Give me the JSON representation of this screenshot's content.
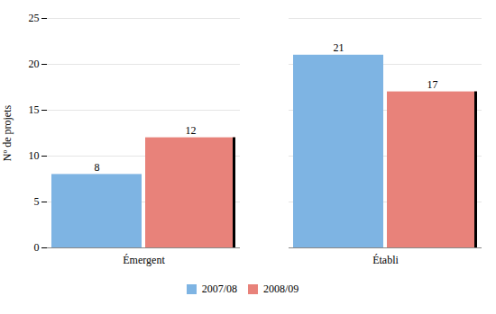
{
  "chart_data": {
    "type": "bar",
    "categories": [
      "Émergent",
      "Établi"
    ],
    "series": [
      {
        "name": "2007/08",
        "color": "#7EB4E3",
        "values": [
          8,
          21
        ]
      },
      {
        "name": "2008/09",
        "color": "#E8827A",
        "values": [
          12,
          17
        ]
      }
    ],
    "ylabel": "Nº de projets",
    "ylim": [
      0,
      25
    ],
    "yticks": [
      0,
      5,
      10,
      15,
      20,
      25
    ],
    "grid": true,
    "legend": "bottom",
    "data_labels": true
  }
}
